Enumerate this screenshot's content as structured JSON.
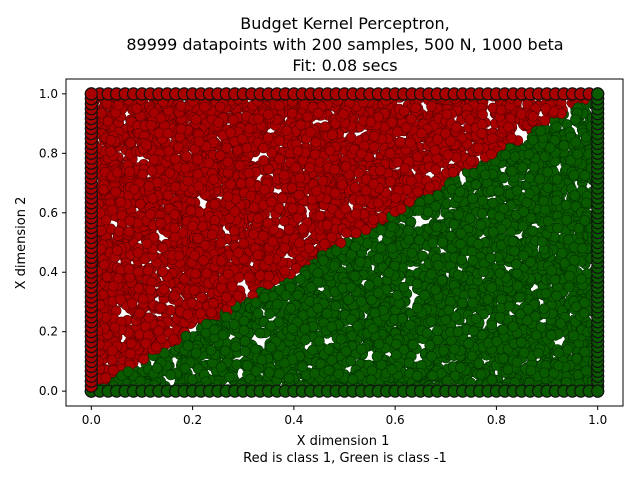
{
  "chart_data": {
    "type": "scatter",
    "title_lines": [
      "Budget Kernel Perceptron,",
      "89999 datapoints with 200 samples, 500 N, 1000 beta",
      "Fit: 0.08 secs"
    ],
    "xlabel": "X dimension 1",
    "xlabel_note": "Red is class 1, Green is class -1",
    "ylabel": "X dimension 2",
    "xlim": [
      -0.05,
      1.05
    ],
    "ylim": [
      -0.05,
      1.05
    ],
    "xticks": [
      "0.0",
      "0.2",
      "0.4",
      "0.6",
      "0.8",
      "1.0"
    ],
    "yticks": [
      "0.0",
      "0.2",
      "0.4",
      "0.6",
      "0.8",
      "1.0"
    ],
    "grid": false,
    "decision_boundary": {
      "from": [
        0.0,
        0.0
      ],
      "to": [
        1.0,
        1.0
      ]
    },
    "n_points": 89999,
    "series": [
      {
        "name": "class 1",
        "color": "#a80000",
        "edge": "#5a0000",
        "region": "y > x"
      },
      {
        "name": "class -1",
        "color": "#0a5a00",
        "edge": "#003200",
        "region": "y < x"
      }
    ]
  }
}
